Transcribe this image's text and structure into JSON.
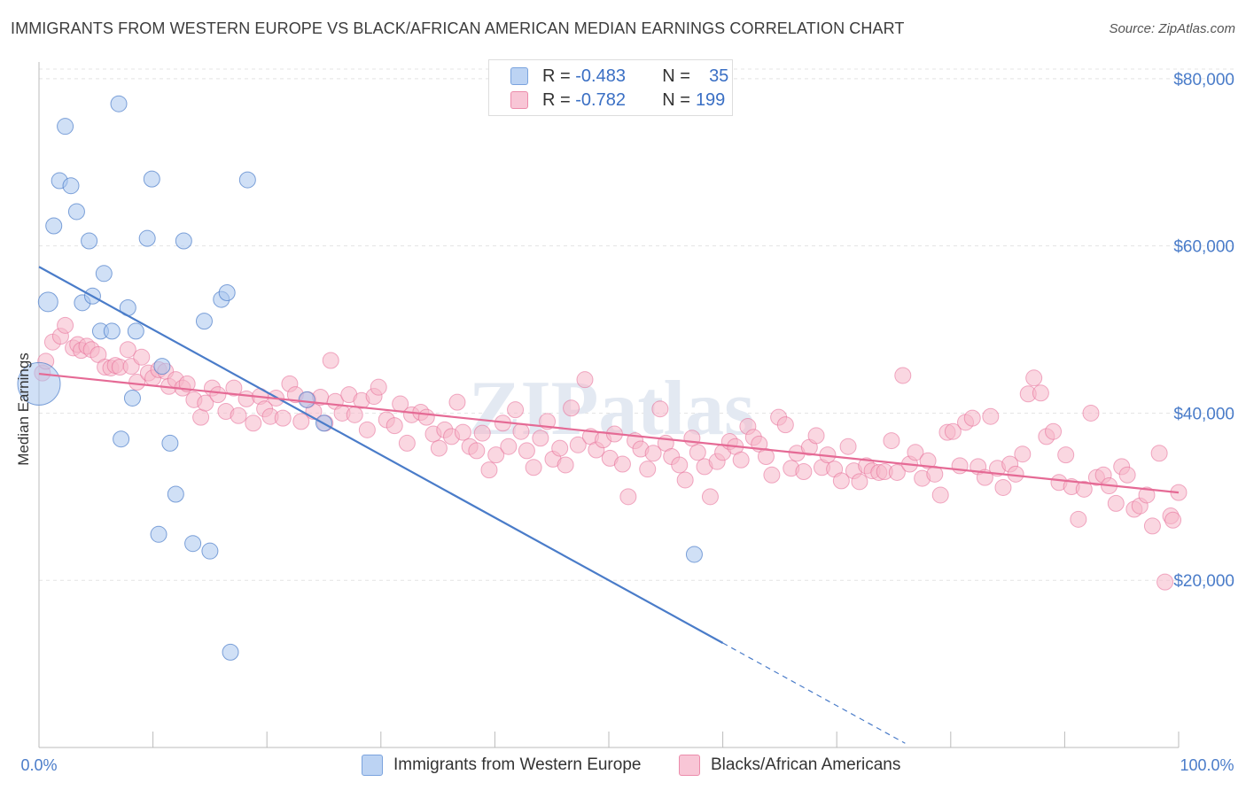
{
  "chart_data": {
    "type": "scatter",
    "title": "IMMIGRANTS FROM WESTERN EUROPE VS BLACK/AFRICAN AMERICAN MEDIAN EARNINGS CORRELATION CHART",
    "source": "Source: ZipAtlas.com",
    "ylabel": "Median Earnings",
    "xlim": [
      0,
      100
    ],
    "ylim": [
      0,
      82000
    ],
    "x_tick_labels": [
      "0.0%",
      "100.0%"
    ],
    "y_ticks": [
      {
        "value": 20000,
        "label": "$20,000"
      },
      {
        "value": 40000,
        "label": "$40,000"
      },
      {
        "value": 60000,
        "label": "$60,000"
      },
      {
        "value": 80000,
        "label": "$80,000"
      }
    ],
    "watermark": "ZIPatlas",
    "legend": [
      {
        "r_label": "R =",
        "r_value": "-0.483",
        "n_label": "N =",
        "n_value": "35"
      },
      {
        "r_label": "R =",
        "r_value": "-0.782",
        "n_label": "N =",
        "n_value": "199"
      }
    ],
    "series": [
      {
        "name": "Immigrants from Western Europe",
        "color": "#4a7cc9",
        "fill": "#a9c6ef",
        "trend": {
          "x0": 0,
          "y0": 57500,
          "x1": 60,
          "y1": 12500,
          "dash_to_x": 76
        },
        "points": [
          [
            0,
            43500,
            24
          ],
          [
            0.8,
            53300,
            11
          ],
          [
            1.3,
            62400,
            9
          ],
          [
            1.8,
            67800,
            9
          ],
          [
            2.3,
            74300,
            9
          ],
          [
            2.8,
            67200,
            9
          ],
          [
            3.3,
            64100,
            9
          ],
          [
            3.8,
            53200,
            9
          ],
          [
            4.4,
            60600,
            9
          ],
          [
            4.7,
            54000,
            9
          ],
          [
            5.4,
            49800,
            9
          ],
          [
            5.7,
            56700,
            9
          ],
          [
            6.4,
            49800,
            9
          ],
          [
            7.2,
            36900,
            9
          ],
          [
            7.0,
            77000,
            9
          ],
          [
            7.8,
            52600,
            9
          ],
          [
            8.2,
            41800,
            9
          ],
          [
            8.5,
            49800,
            9
          ],
          [
            9.5,
            60900,
            9
          ],
          [
            9.9,
            68000,
            9
          ],
          [
            10.5,
            25500,
            9
          ],
          [
            10.8,
            45600,
            9
          ],
          [
            11.5,
            36400,
            9
          ],
          [
            12.0,
            30300,
            9
          ],
          [
            12.7,
            60600,
            9
          ],
          [
            13.5,
            24400,
            9
          ],
          [
            14.5,
            51000,
            9
          ],
          [
            15.0,
            23500,
            9
          ],
          [
            16.0,
            53600,
            9
          ],
          [
            16.5,
            54400,
            9
          ],
          [
            16.8,
            11400,
            9
          ],
          [
            18.3,
            67900,
            9
          ],
          [
            23.5,
            41600,
            9
          ],
          [
            25.0,
            38800,
            9
          ],
          [
            57.5,
            23100,
            9
          ]
        ]
      },
      {
        "name": "Blacks/African Americans",
        "color": "#e56a95",
        "fill": "#f6b6c9",
        "trend": {
          "x0": 0,
          "y0": 44700,
          "x1": 100,
          "y1": 30500
        },
        "points": [
          [
            0.3,
            44800
          ],
          [
            0.6,
            46200
          ],
          [
            1.2,
            48500
          ],
          [
            1.9,
            49200
          ],
          [
            2.3,
            50500
          ],
          [
            3.0,
            47800
          ],
          [
            3.4,
            48200
          ],
          [
            3.7,
            47500
          ],
          [
            4.2,
            48000
          ],
          [
            4.6,
            47600
          ],
          [
            5.2,
            47000
          ],
          [
            5.8,
            45500
          ],
          [
            6.3,
            45400
          ],
          [
            6.7,
            45700
          ],
          [
            7.1,
            45500
          ],
          [
            7.8,
            47600
          ],
          [
            8.1,
            45600
          ],
          [
            8.6,
            43700
          ],
          [
            9.0,
            46700
          ],
          [
            9.6,
            44800
          ],
          [
            10.0,
            44200
          ],
          [
            10.5,
            45200
          ],
          [
            11.1,
            45000
          ],
          [
            11.4,
            43200
          ],
          [
            12.0,
            44000
          ],
          [
            12.6,
            43000
          ],
          [
            13.0,
            43500
          ],
          [
            13.6,
            41600
          ],
          [
            14.2,
            39500
          ],
          [
            14.6,
            41200
          ],
          [
            15.2,
            43000
          ],
          [
            15.7,
            42200
          ],
          [
            16.4,
            40200
          ],
          [
            17.1,
            43000
          ],
          [
            17.5,
            39700
          ],
          [
            18.2,
            41700
          ],
          [
            18.8,
            38800
          ],
          [
            19.4,
            42000
          ],
          [
            19.8,
            40500
          ],
          [
            20.3,
            39600
          ],
          [
            20.8,
            41800
          ],
          [
            21.4,
            39400
          ],
          [
            22.0,
            43500
          ],
          [
            22.5,
            42200
          ],
          [
            23.0,
            39000
          ],
          [
            23.6,
            41600
          ],
          [
            24.1,
            40200
          ],
          [
            24.7,
            41900
          ],
          [
            25.1,
            38800
          ],
          [
            25.6,
            46300
          ],
          [
            26.0,
            41400
          ],
          [
            26.6,
            40000
          ],
          [
            27.2,
            42200
          ],
          [
            27.7,
            39800
          ],
          [
            28.3,
            41500
          ],
          [
            28.8,
            38000
          ],
          [
            29.4,
            42000
          ],
          [
            29.8,
            43100
          ],
          [
            30.5,
            39200
          ],
          [
            31.2,
            38500
          ],
          [
            31.7,
            41100
          ],
          [
            32.3,
            36400
          ],
          [
            32.7,
            39800
          ],
          [
            33.5,
            40100
          ],
          [
            34.0,
            39500
          ],
          [
            34.6,
            37500
          ],
          [
            35.1,
            35800
          ],
          [
            35.6,
            38000
          ],
          [
            36.2,
            37200
          ],
          [
            36.7,
            41300
          ],
          [
            37.2,
            37700
          ],
          [
            37.8,
            36000
          ],
          [
            38.4,
            35500
          ],
          [
            38.9,
            37600
          ],
          [
            39.5,
            33200
          ],
          [
            40.1,
            35000
          ],
          [
            40.7,
            38800
          ],
          [
            41.2,
            36000
          ],
          [
            41.8,
            40400
          ],
          [
            42.3,
            37800
          ],
          [
            42.8,
            35500
          ],
          [
            43.4,
            33500
          ],
          [
            44.0,
            37000
          ],
          [
            44.6,
            39000
          ],
          [
            45.1,
            34500
          ],
          [
            45.7,
            35800
          ],
          [
            46.2,
            33800
          ],
          [
            46.7,
            40600
          ],
          [
            47.3,
            36200
          ],
          [
            47.9,
            44000
          ],
          [
            48.4,
            37200
          ],
          [
            48.9,
            35600
          ],
          [
            49.5,
            36800
          ],
          [
            50.1,
            34600
          ],
          [
            50.5,
            37500
          ],
          [
            51.2,
            33900
          ],
          [
            51.7,
            30000
          ],
          [
            52.3,
            36700
          ],
          [
            52.8,
            35700
          ],
          [
            53.4,
            33300
          ],
          [
            53.9,
            35200
          ],
          [
            54.5,
            40500
          ],
          [
            55.0,
            36400
          ],
          [
            55.5,
            34800
          ],
          [
            56.2,
            33800
          ],
          [
            56.7,
            32000
          ],
          [
            57.3,
            37000
          ],
          [
            57.8,
            35300
          ],
          [
            58.4,
            33600
          ],
          [
            58.9,
            30000
          ],
          [
            59.5,
            34200
          ],
          [
            60.0,
            35300
          ],
          [
            60.6,
            36600
          ],
          [
            61.1,
            36000
          ],
          [
            61.6,
            34400
          ],
          [
            62.2,
            38400
          ],
          [
            62.7,
            37100
          ],
          [
            63.2,
            36300
          ],
          [
            63.8,
            34800
          ],
          [
            64.3,
            32600
          ],
          [
            64.9,
            39500
          ],
          [
            65.5,
            38600
          ],
          [
            66.0,
            33400
          ],
          [
            66.5,
            35200
          ],
          [
            67.1,
            33000
          ],
          [
            67.6,
            35900
          ],
          [
            68.2,
            37300
          ],
          [
            68.7,
            33500
          ],
          [
            69.2,
            35000
          ],
          [
            69.8,
            33300
          ],
          [
            70.4,
            31900
          ],
          [
            71.0,
            36000
          ],
          [
            71.5,
            33100
          ],
          [
            72.0,
            31800
          ],
          [
            72.6,
            33700
          ],
          [
            73.1,
            33100
          ],
          [
            73.7,
            32900
          ],
          [
            74.2,
            33000
          ],
          [
            74.8,
            36700
          ],
          [
            75.3,
            32900
          ],
          [
            75.8,
            44500
          ],
          [
            76.4,
            33900
          ],
          [
            76.9,
            35300
          ],
          [
            77.5,
            32200
          ],
          [
            78.0,
            34300
          ],
          [
            78.6,
            32700
          ],
          [
            79.1,
            30200
          ],
          [
            79.7,
            37700
          ],
          [
            80.2,
            37800
          ],
          [
            80.8,
            33700
          ],
          [
            81.3,
            38900
          ],
          [
            81.9,
            39400
          ],
          [
            82.4,
            33600
          ],
          [
            83.0,
            32300
          ],
          [
            83.5,
            39600
          ],
          [
            84.1,
            33400
          ],
          [
            84.6,
            31100
          ],
          [
            85.2,
            33900
          ],
          [
            85.7,
            32700
          ],
          [
            86.3,
            35100
          ],
          [
            86.8,
            42300
          ],
          [
            87.3,
            44200
          ],
          [
            87.9,
            42400
          ],
          [
            88.4,
            37200
          ],
          [
            89.0,
            37800
          ],
          [
            89.5,
            31700
          ],
          [
            90.1,
            35000
          ],
          [
            90.6,
            31200
          ],
          [
            91.2,
            27300
          ],
          [
            91.7,
            30900
          ],
          [
            92.3,
            40000
          ],
          [
            92.8,
            32300
          ],
          [
            93.4,
            32600
          ],
          [
            93.9,
            31300
          ],
          [
            94.5,
            29200
          ],
          [
            95.0,
            33600
          ],
          [
            95.5,
            32600
          ],
          [
            96.1,
            28500
          ],
          [
            96.6,
            28900
          ],
          [
            97.2,
            30200
          ],
          [
            97.7,
            26500
          ],
          [
            98.3,
            35200
          ],
          [
            98.8,
            19800
          ],
          [
            99.3,
            27700
          ],
          [
            99.5,
            27200
          ],
          [
            100.0,
            30500
          ]
        ]
      }
    ]
  }
}
